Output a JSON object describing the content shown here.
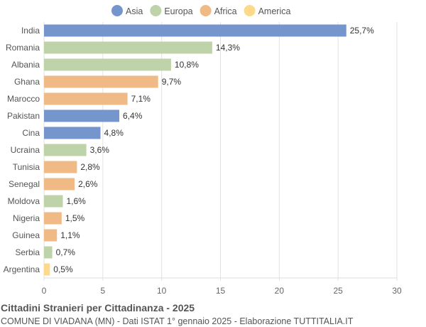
{
  "chart_data": {
    "type": "bar",
    "orientation": "horizontal",
    "title": "Cittadini Stranieri per Cittadinanza - 2025",
    "subtitle": "COMUNE DI VIADANA (MN) - Dati ISTAT 1° gennaio 2025 - Elaborazione TUTTITALIA.IT",
    "categories": [
      "India",
      "Romania",
      "Albania",
      "Ghana",
      "Marocco",
      "Pakistan",
      "Cina",
      "Ucraina",
      "Tunisia",
      "Senegal",
      "Moldova",
      "Nigeria",
      "Guinea",
      "Serbia",
      "Argentina"
    ],
    "values": [
      25.7,
      14.3,
      10.8,
      9.7,
      7.1,
      6.4,
      4.8,
      3.6,
      2.8,
      2.6,
      1.6,
      1.5,
      1.1,
      0.7,
      0.5
    ],
    "labels": [
      "25,7%",
      "14,3%",
      "10,8%",
      "9,7%",
      "7,1%",
      "6,4%",
      "4,8%",
      "3,6%",
      "2,8%",
      "2,6%",
      "1,6%",
      "1,5%",
      "1,1%",
      "0,7%",
      "0,5%"
    ],
    "groups": [
      "Asia",
      "Europa",
      "Europa",
      "Africa",
      "Africa",
      "Asia",
      "Asia",
      "Europa",
      "Africa",
      "Africa",
      "Europa",
      "Africa",
      "Africa",
      "Europa",
      "America"
    ],
    "legend": [
      {
        "name": "Asia",
        "color": "#7596cc"
      },
      {
        "name": "Europa",
        "color": "#bfd3aa"
      },
      {
        "name": "Africa",
        "color": "#f0ba86"
      },
      {
        "name": "America",
        "color": "#fdd98b"
      }
    ],
    "legend_position": "top",
    "xlim": [
      0,
      30
    ],
    "xticks": [
      "0",
      "5",
      "10",
      "15",
      "20",
      "25",
      "30"
    ],
    "grid": true
  }
}
